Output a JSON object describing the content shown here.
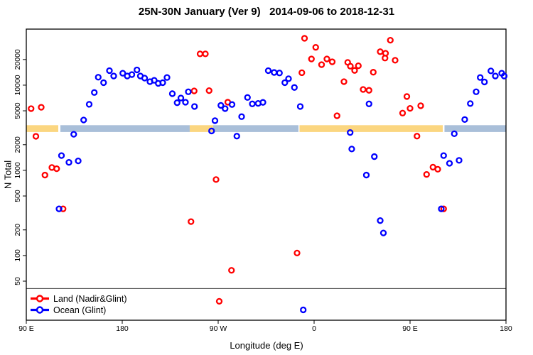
{
  "chart_data": {
    "type": "scatter",
    "title": "25N-30N January (Ver 9)   2014-09-06 to 2018-12-31",
    "xlabel": "Longitude (deg E)",
    "ylabel": "N Total",
    "x_axis": {
      "range": [
        90,
        540
      ],
      "ticks": [
        {
          "pos": 90,
          "label": "90 E"
        },
        {
          "pos": 180,
          "label": "180"
        },
        {
          "pos": 270,
          "label": "90 W"
        },
        {
          "pos": 360,
          "label": "0"
        },
        {
          "pos": 450,
          "label": "90 E"
        },
        {
          "pos": 540,
          "label": "180"
        }
      ]
    },
    "y_axis": {
      "scale": "log",
      "range": [
        17.4,
        45500
      ],
      "ticks": [
        {
          "value": 50,
          "label": "50"
        },
        {
          "value": 100,
          "label": "100"
        },
        {
          "value": 200,
          "label": "200"
        },
        {
          "value": 500,
          "label": "500"
        },
        {
          "value": 1000,
          "label": "1000"
        },
        {
          "value": 2000,
          "label": "2000"
        },
        {
          "value": 5000,
          "label": "5000"
        },
        {
          "value": 10000,
          "label": "10000"
        },
        {
          "value": 20000,
          "label": "20000"
        }
      ]
    },
    "reference_line": {
      "value": 41,
      "color": "#3c3c3c"
    },
    "surface_band": {
      "n_top": 3390,
      "n_bottom": 2820,
      "land_color": "#FBD680",
      "ocean_color": "#A9BFD9",
      "segments": [
        {
          "type": "land",
          "from": 90,
          "to": 120
        },
        {
          "type": "ocean",
          "from": 122,
          "to": 243.3
        },
        {
          "type": "land",
          "from": 243.3,
          "to": 265.3
        },
        {
          "type": "ocean",
          "from": 265.3,
          "to": 345.3
        },
        {
          "type": "land",
          "from": 346.3,
          "to": 480.7
        },
        {
          "type": "ocean",
          "from": 482.3,
          "to": 540
        }
      ]
    },
    "series": [
      {
        "name": "Land (Nadir&Glint)",
        "color": "#FF0000",
        "marker": "open-circle",
        "points": [
          [
            94.5,
            5300
          ],
          [
            104,
            5500
          ],
          [
            99,
            2510
          ],
          [
            114,
            1080
          ],
          [
            118.5,
            1045
          ],
          [
            107.5,
            880
          ],
          [
            124.5,
            353
          ],
          [
            244.5,
            250
          ],
          [
            253,
            23300
          ],
          [
            258,
            23300
          ],
          [
            247.5,
            8560
          ],
          [
            261.5,
            8630
          ],
          [
            279,
            6310
          ],
          [
            268,
            780
          ],
          [
            282.5,
            67
          ],
          [
            271,
            29
          ],
          [
            344,
            107
          ],
          [
            351,
            35500
          ],
          [
            361.5,
            27800
          ],
          [
            357.5,
            20300
          ],
          [
            367,
            17400
          ],
          [
            372,
            20300
          ],
          [
            377,
            18800
          ],
          [
            348.5,
            14000
          ],
          [
            388,
            11000
          ],
          [
            381.5,
            4370
          ],
          [
            391.5,
            18500
          ],
          [
            394,
            16700
          ],
          [
            401.5,
            16900
          ],
          [
            398,
            14900
          ],
          [
            415.5,
            14200
          ],
          [
            422,
            24700
          ],
          [
            427,
            23700
          ],
          [
            426.5,
            20800
          ],
          [
            436,
            19600
          ],
          [
            431.5,
            33700
          ],
          [
            406,
            8900
          ],
          [
            411.5,
            8700
          ],
          [
            447,
            7360
          ],
          [
            450,
            5340
          ],
          [
            460,
            5730
          ],
          [
            443,
            4700
          ],
          [
            456.5,
            2520
          ],
          [
            471.5,
            1090
          ],
          [
            476,
            1030
          ],
          [
            465.5,
            895
          ],
          [
            481.5,
            353
          ]
        ]
      },
      {
        "name": "Ocean (Glint)",
        "color": "#0000FF",
        "marker": "open-circle",
        "points": [
          [
            120.7,
            353
          ],
          [
            134.5,
            2650
          ],
          [
            143.8,
            3900
          ],
          [
            149,
            5960
          ],
          [
            153.8,
            8200
          ],
          [
            157.5,
            12400
          ],
          [
            162.5,
            10700
          ],
          [
            168,
            14800
          ],
          [
            172,
            12800
          ],
          [
            180.5,
            13800
          ],
          [
            184.7,
            12800
          ],
          [
            189,
            13300
          ],
          [
            193.8,
            15100
          ],
          [
            197,
            12800
          ],
          [
            201,
            12100
          ],
          [
            206,
            11000
          ],
          [
            210,
            11400
          ],
          [
            213.8,
            10500
          ],
          [
            218,
            10700
          ],
          [
            222,
            12300
          ],
          [
            227,
            7940
          ],
          [
            231.5,
            6220
          ],
          [
            235,
            7060
          ],
          [
            239.3,
            6300
          ],
          [
            242,
            8360
          ],
          [
            247.8,
            5620
          ],
          [
            263.8,
            2900
          ],
          [
            267,
            3830
          ],
          [
            272.5,
            5790
          ],
          [
            276.5,
            5300
          ],
          [
            283,
            5930
          ],
          [
            287.5,
            2520
          ],
          [
            292,
            4270
          ],
          [
            297.5,
            7170
          ],
          [
            302,
            6030
          ],
          [
            307.5,
            6110
          ],
          [
            312,
            6280
          ],
          [
            317,
            14800
          ],
          [
            322.5,
            14100
          ],
          [
            327.5,
            13900
          ],
          [
            332.5,
            10700
          ],
          [
            336,
            11900
          ],
          [
            341.5,
            9400
          ],
          [
            347,
            5620
          ],
          [
            123,
            1490
          ],
          [
            130,
            1240
          ],
          [
            138.7,
            1290
          ],
          [
            349.8,
            23
          ],
          [
            393.8,
            2780
          ],
          [
            395.3,
            1780
          ],
          [
            416.5,
            1450
          ],
          [
            409,
            880
          ],
          [
            411.5,
            6030
          ],
          [
            422,
            257
          ],
          [
            425,
            184
          ],
          [
            479.3,
            353
          ],
          [
            481.5,
            1490
          ],
          [
            487,
            1210
          ],
          [
            496,
            1310
          ],
          [
            491.5,
            2690
          ],
          [
            501.3,
            3950
          ],
          [
            506.5,
            6080
          ],
          [
            512,
            8360
          ],
          [
            515.8,
            12300
          ],
          [
            519.8,
            10900
          ],
          [
            525.8,
            14700
          ],
          [
            530,
            12800
          ],
          [
            536,
            13800
          ],
          [
            538.3,
            12800
          ]
        ]
      }
    ],
    "legend": {
      "position": "bottom-left"
    }
  }
}
